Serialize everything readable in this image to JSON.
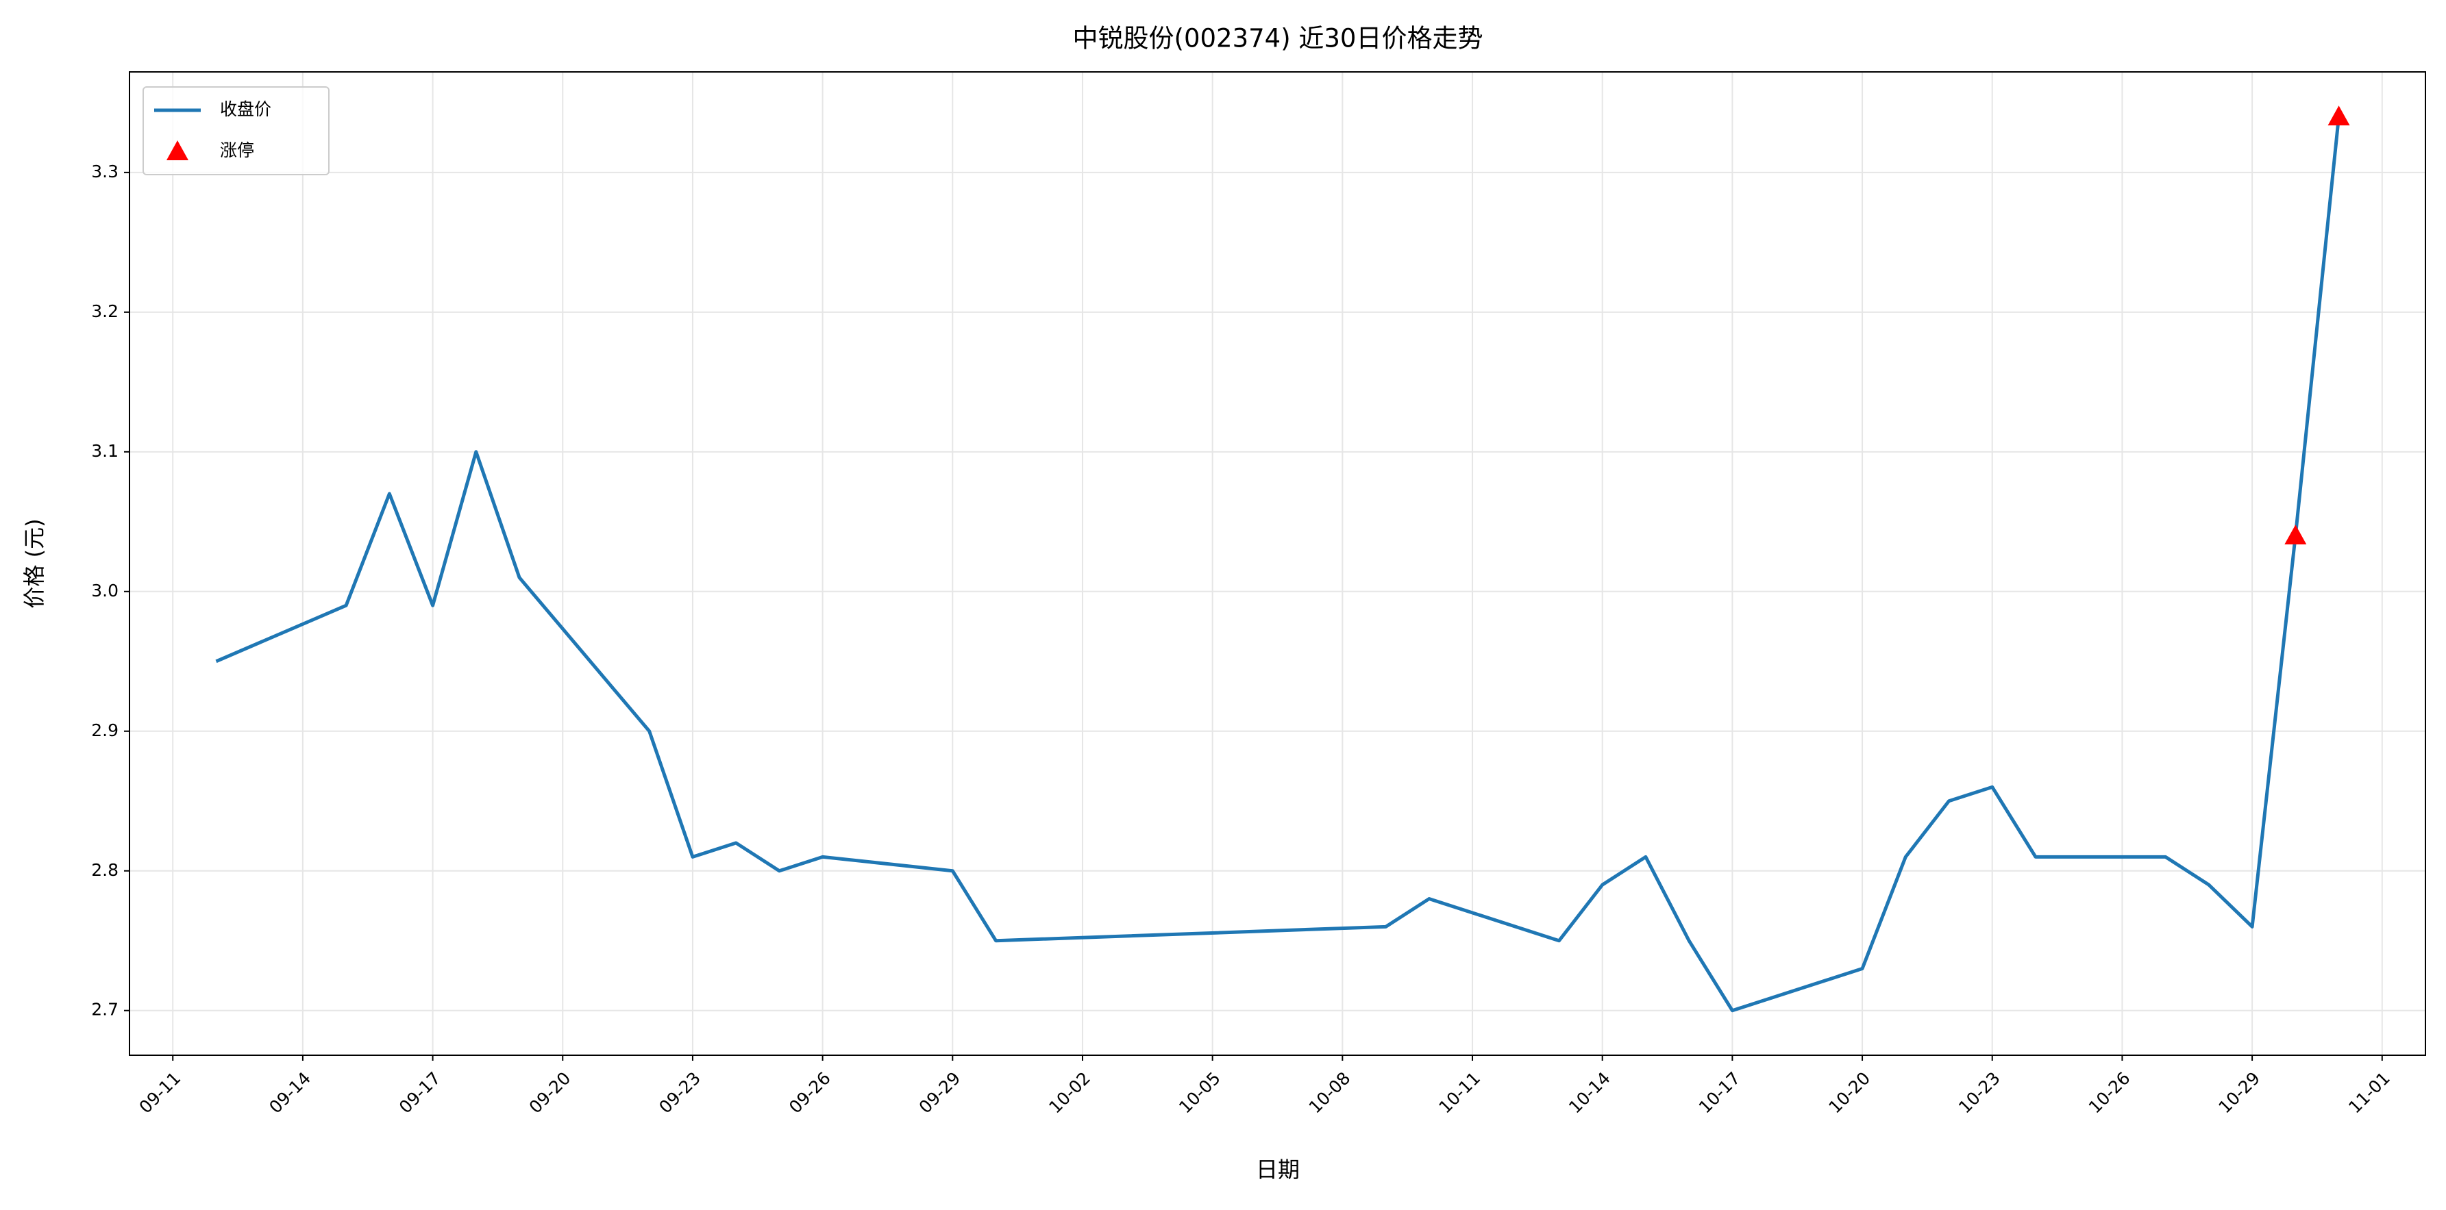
{
  "chart_data": {
    "type": "line",
    "title": "中锐股份(002374) 近30日价格走势",
    "x_label": "日期",
    "y_label": "价格 (元)",
    "series": [
      {
        "name": "收盘价",
        "type": "line",
        "color": "#1f77b4",
        "x": [
          "09-12",
          "09-15",
          "09-16",
          "09-17",
          "09-18",
          "09-19",
          "09-22",
          "09-23",
          "09-24",
          "09-25",
          "09-26",
          "09-29",
          "09-30",
          "10-09",
          "10-10",
          "10-13",
          "10-14",
          "10-15",
          "10-16",
          "10-17",
          "10-20",
          "10-21",
          "10-22",
          "10-23",
          "10-24",
          "10-27",
          "10-28",
          "10-29",
          "10-30",
          "10-31"
        ],
        "values": [
          2.95,
          2.99,
          3.07,
          2.99,
          3.1,
          3.01,
          2.9,
          2.81,
          2.82,
          2.8,
          2.81,
          2.8,
          2.75,
          2.76,
          2.78,
          2.75,
          2.79,
          2.81,
          2.75,
          2.7,
          2.73,
          2.81,
          2.85,
          2.86,
          2.81,
          2.81,
          2.79,
          2.76,
          3.04,
          3.34
        ]
      },
      {
        "name": "涨停",
        "type": "scatter",
        "color": "#ff0000",
        "x": [
          "10-30",
          "10-31"
        ],
        "values": [
          3.04,
          3.34
        ]
      }
    ],
    "xlim": [
      "09-10",
      "11-02"
    ],
    "xticks": [
      "09-11",
      "09-14",
      "09-17",
      "09-20",
      "09-23",
      "09-26",
      "09-29",
      "10-02",
      "10-05",
      "10-08",
      "10-11",
      "10-14",
      "10-17",
      "10-20",
      "10-23",
      "10-26",
      "10-29",
      "11-01"
    ],
    "ylim": [
      2.668,
      3.372
    ],
    "yticks": [
      {
        "value": 2.7,
        "label": "2.7"
      },
      {
        "value": 2.8,
        "label": "2.8"
      },
      {
        "value": 2.9,
        "label": "2.9"
      },
      {
        "value": 3.0,
        "label": "3.0"
      },
      {
        "value": 3.1,
        "label": "3.1"
      },
      {
        "value": 3.2,
        "label": "3.2"
      },
      {
        "value": 3.3,
        "label": "3.3"
      }
    ],
    "grid": true,
    "legend": "upper-left"
  }
}
